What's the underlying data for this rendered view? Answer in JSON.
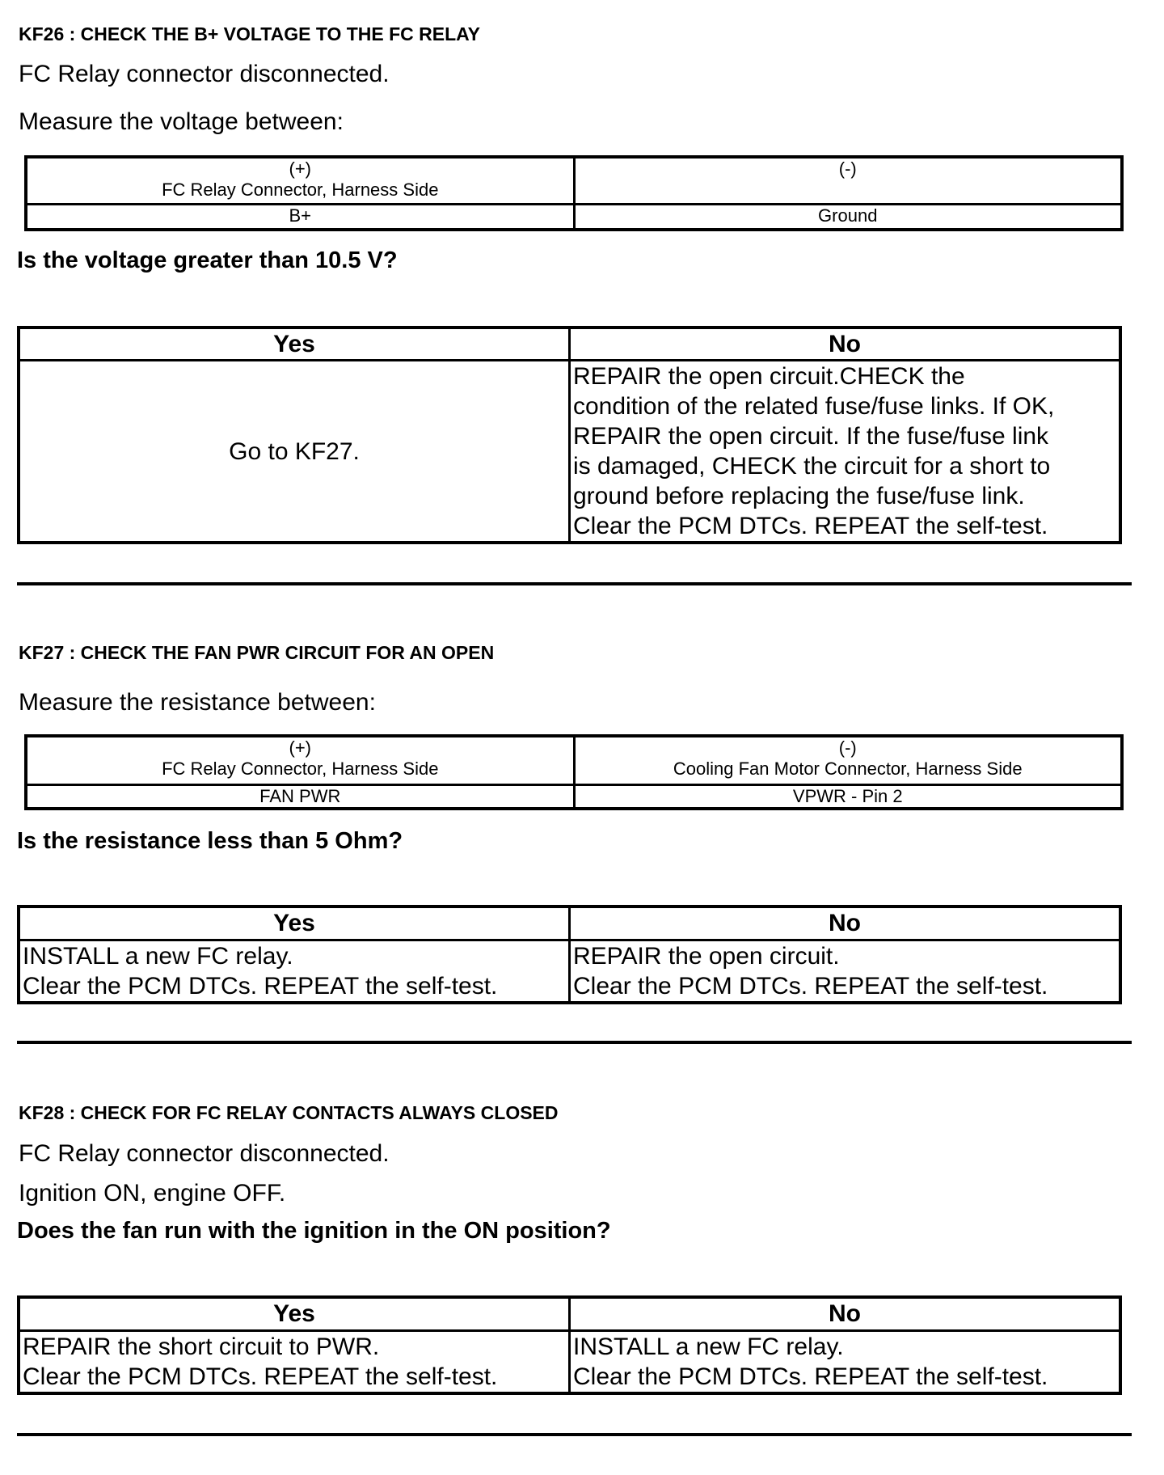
{
  "kf26": {
    "heading": "KF26 : CHECK THE B+ VOLTAGE TO THE FC RELAY",
    "condition": "FC Relay connector disconnected.",
    "instruction": "Measure the voltage between:",
    "measure_table": {
      "plus_label": "(+)",
      "plus_desc": "FC Relay Connector, Harness Side",
      "minus_label": "(-)",
      "minus_desc": "",
      "plus_point": "B+",
      "minus_point": "Ground"
    },
    "question": "Is the voltage greater than 10.5 V?",
    "result": {
      "yes_header": "Yes",
      "no_header": "No",
      "yes": "Go to KF27.",
      "no": [
        "REPAIR the open circuit.CHECK the",
        "condition of the related fuse/fuse links. If OK,",
        "REPAIR the open circuit. If the fuse/fuse link",
        "is damaged, CHECK the circuit for a short to",
        "ground before replacing the fuse/fuse link.",
        "Clear the PCM DTCs. REPEAT the self-test."
      ]
    }
  },
  "kf27": {
    "heading": "KF27 : CHECK THE FAN PWR CIRCUIT FOR AN OPEN",
    "instruction": "Measure the resistance between:",
    "measure_table": {
      "plus_label": "(+)",
      "plus_desc": "FC Relay Connector, Harness Side",
      "minus_label": "(-)",
      "minus_desc": "Cooling Fan Motor Connector, Harness Side",
      "plus_point": "FAN PWR",
      "minus_point": "VPWR - Pin 2"
    },
    "question": "Is the resistance less than 5 Ohm?",
    "result": {
      "yes_header": "Yes",
      "no_header": "No",
      "yes": [
        "INSTALL a new FC relay.",
        "Clear the PCM DTCs. REPEAT the self-test."
      ],
      "no": [
        "REPAIR the open circuit.",
        "Clear the PCM DTCs. REPEAT the self-test."
      ]
    }
  },
  "kf28": {
    "heading": "KF28 : CHECK FOR FC RELAY CONTACTS ALWAYS CLOSED",
    "condition1": "FC Relay connector disconnected.",
    "condition2": "Ignition ON, engine OFF.",
    "question": "Does the fan run with the ignition in the ON position?",
    "result": {
      "yes_header": "Yes",
      "no_header": "No",
      "yes": [
        "REPAIR the short circuit to PWR.",
        "Clear the PCM DTCs. REPEAT the self-test."
      ],
      "no": [
        "INSTALL a new FC relay.",
        "Clear the PCM DTCs. REPEAT the self-test."
      ]
    }
  }
}
